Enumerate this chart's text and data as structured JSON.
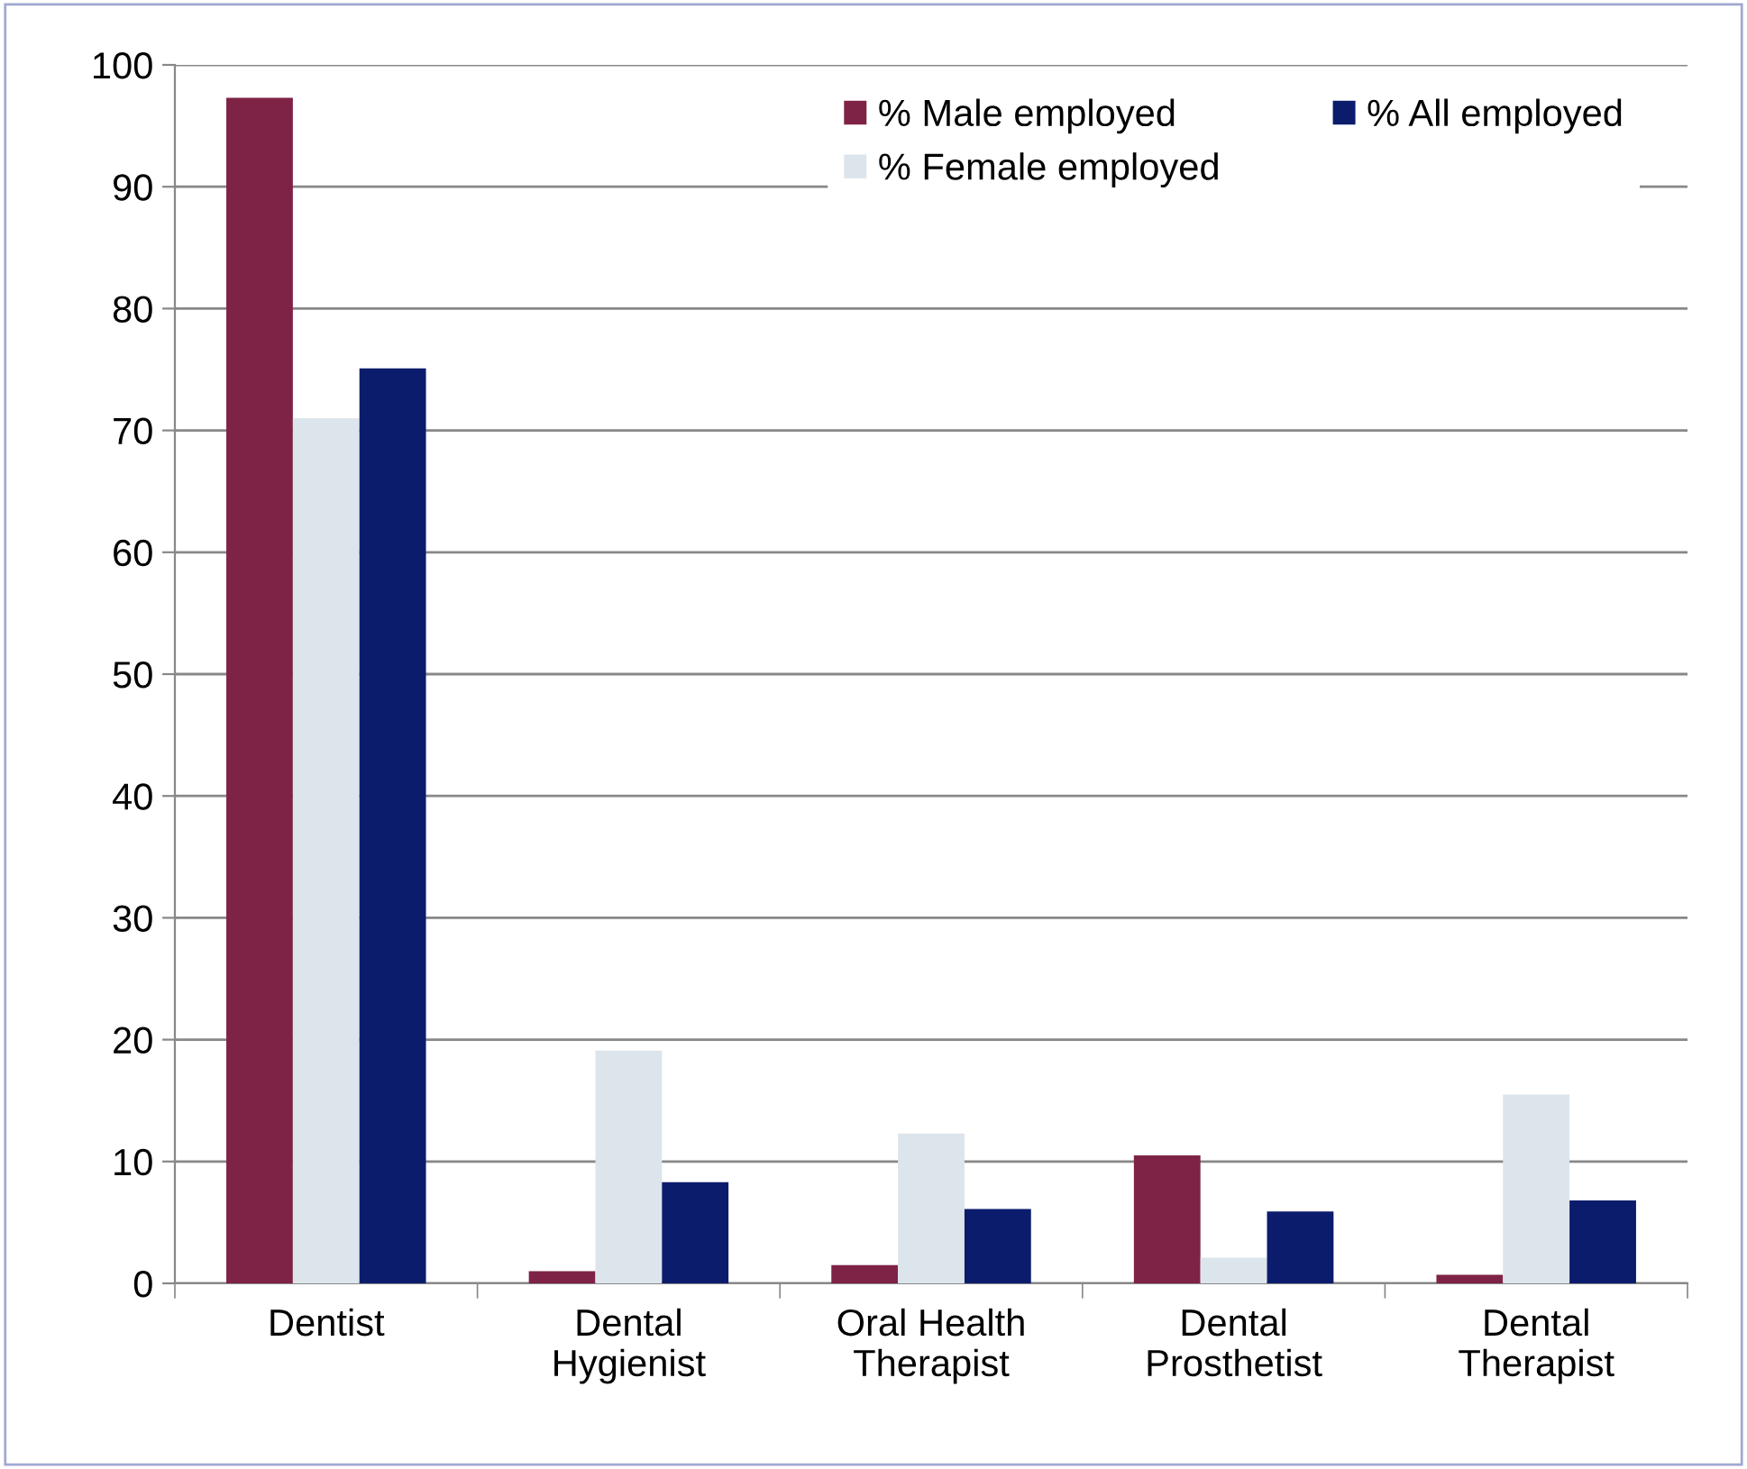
{
  "chart_data": {
    "type": "bar",
    "categories": [
      "Dentist",
      "Dental\nHygienist",
      "Oral Health\nTherapist",
      "Dental\nProsthetist",
      "Dental\nTherapist"
    ],
    "series": [
      {
        "name": "% Male employed",
        "color": "#7f2346",
        "values": [
          97.3,
          1.0,
          1.5,
          10.5,
          0.7
        ]
      },
      {
        "name": "% Female employed",
        "color": "#dde5ec",
        "values": [
          71.0,
          19.1,
          12.3,
          2.1,
          15.5
        ]
      },
      {
        "name": "% All employed",
        "color": "#0c1c6c",
        "values": [
          75.1,
          8.3,
          6.1,
          5.9,
          6.8
        ]
      }
    ],
    "ylim": [
      0,
      100
    ],
    "yticks": [
      0,
      10,
      20,
      30,
      40,
      50,
      60,
      70,
      80,
      90,
      100
    ],
    "grid": "y",
    "legend": "top right"
  }
}
